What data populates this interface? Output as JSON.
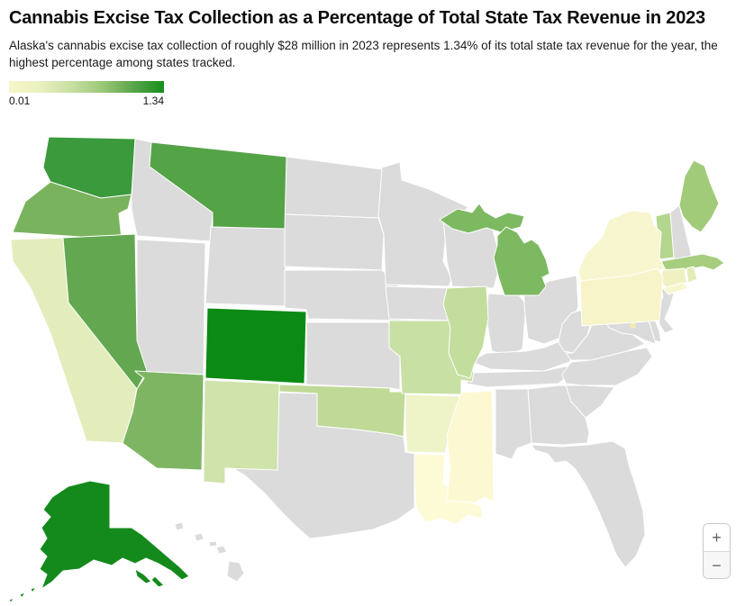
{
  "header": {
    "title": "Cannabis Excise Tax Collection as a Percentage of Total State Tax Revenue in 2023",
    "subtitle": "Alaska's cannabis excise tax collection of roughly $28 million in 2023 represents 1.34% of its total state tax revenue for the year, the highest percentage among states tracked."
  },
  "legend": {
    "min_label": "0.01",
    "max_label": "1.34",
    "gradient_stops": [
      "#f7f7c8",
      "#e9f0c0",
      "#c8dfa2",
      "#9cc878",
      "#5aa54a",
      "#16901c"
    ]
  },
  "zoom_control": {
    "zoom_in_label": "+",
    "zoom_out_label": "−"
  },
  "chart_data": {
    "type": "heatmap",
    "subtype": "us-state-choropleth",
    "title": "Cannabis Excise Tax Collection as a Percentage of Total State Tax Revenue in 2023",
    "unit": "percent of total state tax revenue",
    "color_scale_domain": [
      0.01,
      1.34
    ],
    "value_note": "Only Alaska's value (1.34%, ~$28 million) is stated on screen; other values estimated from the color scale",
    "untracked_fill": "#dbdbdb",
    "states": [
      {
        "name": "Washington",
        "abbr": "WA",
        "value_approx": 1.1,
        "fill": "#3a9a3c"
      },
      {
        "name": "Oregon",
        "abbr": "OR",
        "value_approx": 0.73,
        "fill": "#7ab35e"
      },
      {
        "name": "California",
        "abbr": "CA",
        "value_approx": 0.22,
        "fill": "#e3edbc"
      },
      {
        "name": "Nevada",
        "abbr": "NV",
        "value_approx": 0.8,
        "fill": "#63a850"
      },
      {
        "name": "Montana",
        "abbr": "MT",
        "value_approx": 0.85,
        "fill": "#55a347"
      },
      {
        "name": "Colorado",
        "abbr": "CO",
        "value_approx": 1.3,
        "fill": "#0b8b14"
      },
      {
        "name": "Arizona",
        "abbr": "AZ",
        "value_approx": 0.72,
        "fill": "#7eb562"
      },
      {
        "name": "New Mexico",
        "abbr": "NM",
        "value_approx": 0.33,
        "fill": "#cfe3ab"
      },
      {
        "name": "Alaska",
        "abbr": "AK",
        "value_approx": 1.34,
        "fill": "#148a1c"
      },
      {
        "name": "Oklahoma",
        "abbr": "OK",
        "value_approx": 0.4,
        "fill": "#bfda97"
      },
      {
        "name": "Missouri",
        "abbr": "MO",
        "value_approx": 0.36,
        "fill": "#c9e0a5"
      },
      {
        "name": "Arkansas",
        "abbr": "AR",
        "value_approx": 0.15,
        "fill": "#eff3c8"
      },
      {
        "name": "Louisiana",
        "abbr": "LA",
        "value_approx": 0.02,
        "fill": "#fdfad6"
      },
      {
        "name": "Mississippi",
        "abbr": "MS",
        "value_approx": 0.04,
        "fill": "#fcf8d1"
      },
      {
        "name": "Illinois",
        "abbr": "IL",
        "value_approx": 0.42,
        "fill": "#c3dd9c"
      },
      {
        "name": "Michigan",
        "abbr": "MI",
        "value_approx": 0.7,
        "fill": "#7cb961"
      },
      {
        "name": "Maine",
        "abbr": "ME",
        "value_approx": 0.55,
        "fill": "#a2cb79"
      },
      {
        "name": "Vermont",
        "abbr": "VT",
        "value_approx": 0.45,
        "fill": "#b4d58e"
      },
      {
        "name": "Massachusetts",
        "abbr": "MA",
        "value_approx": 0.53,
        "fill": "#a6ce7e"
      },
      {
        "name": "Rhode Island",
        "abbr": "RI",
        "value_approx": 0.38,
        "fill": "#e2ecb6"
      },
      {
        "name": "Connecticut",
        "abbr": "CT",
        "value_approx": 0.15,
        "fill": "#eff1c3"
      },
      {
        "name": "New York",
        "abbr": "NY",
        "value_approx": 0.07,
        "fill": "#f8f6cf"
      },
      {
        "name": "Pennsylvania",
        "abbr": "PA",
        "value_approx": 0.07,
        "fill": "#f7f4c9"
      },
      {
        "name": "District of Columbia",
        "abbr": "DC",
        "value_approx": 0.12,
        "fill": "#f3eda0"
      }
    ],
    "untracked_states": [
      {
        "name": "Idaho",
        "abbr": "ID"
      },
      {
        "name": "Utah",
        "abbr": "UT"
      },
      {
        "name": "Wyoming",
        "abbr": "WY"
      },
      {
        "name": "North Dakota",
        "abbr": "ND"
      },
      {
        "name": "South Dakota",
        "abbr": "SD"
      },
      {
        "name": "Nebraska",
        "abbr": "NE"
      },
      {
        "name": "Kansas",
        "abbr": "KS"
      },
      {
        "name": "Texas",
        "abbr": "TX"
      },
      {
        "name": "Minnesota",
        "abbr": "MN"
      },
      {
        "name": "Iowa",
        "abbr": "IA"
      },
      {
        "name": "Wisconsin",
        "abbr": "WI"
      },
      {
        "name": "Indiana",
        "abbr": "IN"
      },
      {
        "name": "Ohio",
        "abbr": "OH"
      },
      {
        "name": "Kentucky",
        "abbr": "KY"
      },
      {
        "name": "Tennessee",
        "abbr": "TN"
      },
      {
        "name": "West Virginia",
        "abbr": "WV"
      },
      {
        "name": "Virginia",
        "abbr": "VA"
      },
      {
        "name": "North Carolina",
        "abbr": "NC"
      },
      {
        "name": "South Carolina",
        "abbr": "SC"
      },
      {
        "name": "Georgia",
        "abbr": "GA"
      },
      {
        "name": "Alabama",
        "abbr": "AL"
      },
      {
        "name": "Florida",
        "abbr": "FL"
      },
      {
        "name": "New Hampshire",
        "abbr": "NH"
      },
      {
        "name": "New Jersey",
        "abbr": "NJ"
      },
      {
        "name": "Delaware",
        "abbr": "DE"
      },
      {
        "name": "Maryland",
        "abbr": "MD"
      },
      {
        "name": "Hawaii",
        "abbr": "HI"
      }
    ]
  }
}
